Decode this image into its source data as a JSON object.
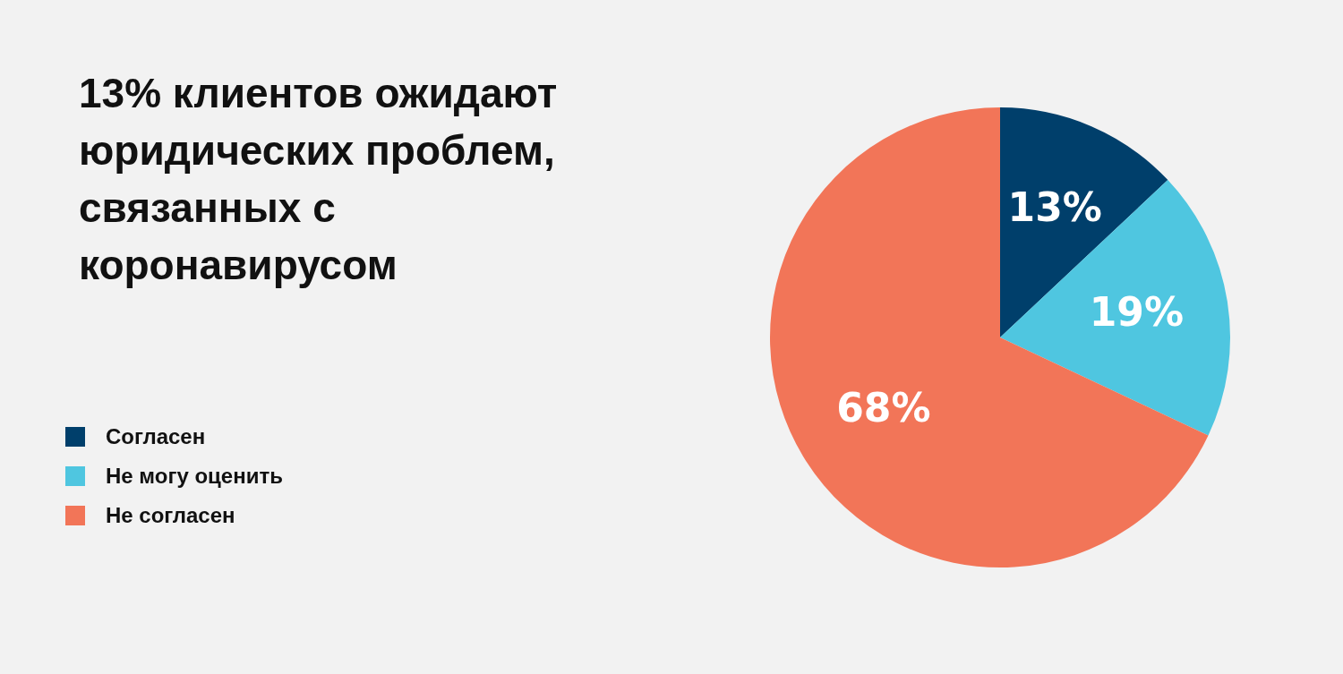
{
  "chart_data": {
    "type": "pie",
    "title": "13% клиентов ожидают юридических проблем, связанных с коронавирусом",
    "categories": [
      "Согласен",
      "Не могу оценить",
      "Не согласен"
    ],
    "values": [
      13,
      19,
      68
    ],
    "colors": [
      "#003f6b",
      "#4fc6e0",
      "#f27558"
    ],
    "value_labels": [
      "13%",
      "19%",
      "68%"
    ],
    "legend": "left"
  }
}
